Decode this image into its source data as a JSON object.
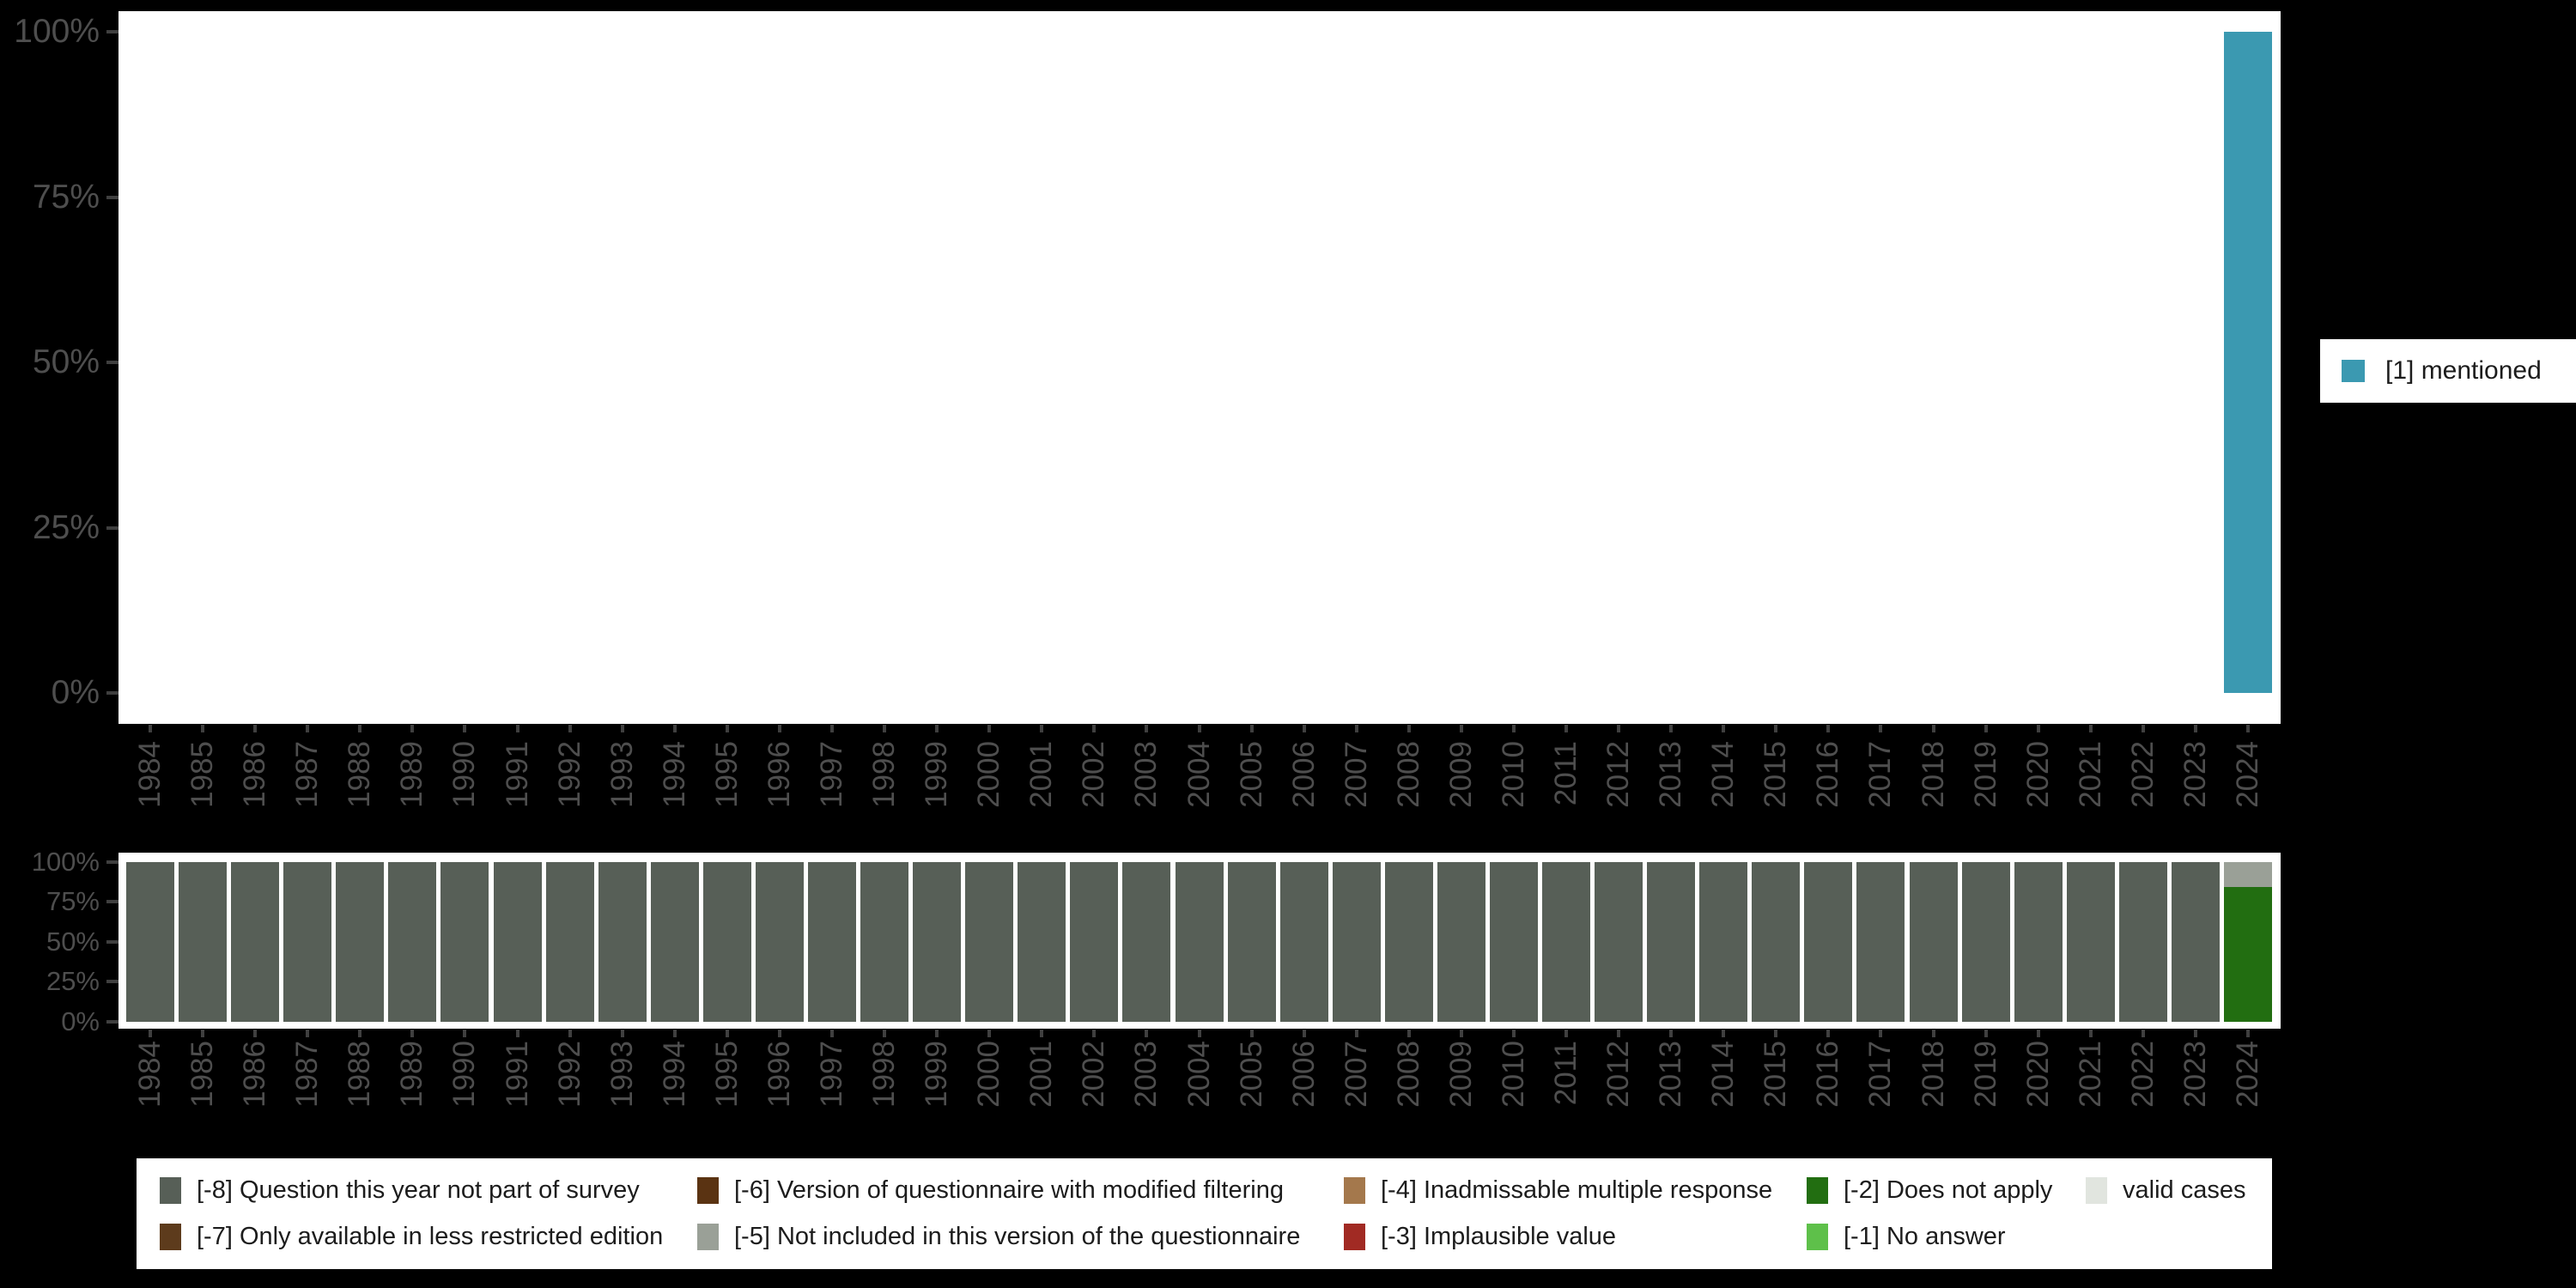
{
  "background": "#000000",
  "panel_color": "#ffffff",
  "axis_text_color": "#4e4e4e",
  "top_legend": {
    "label": "[1] mentioned",
    "color": "#3b99b1"
  },
  "missing_legend": {
    "columns": [
      [
        {
          "label": "[-8] Question this year not part of survey",
          "color": "#575f57"
        },
        {
          "label": "[-7] Only available in less restricted edition",
          "color": "#5d3b1c"
        }
      ],
      [
        {
          "label": "[-6] Version of questionnaire with modified filtering",
          "color": "#5a3312"
        },
        {
          "label": "[-5] Not included in this version of the questionnaire",
          "color": "#9aa097"
        }
      ],
      [
        {
          "label": "[-4] Inadmissable multiple response",
          "color": "#a4784c"
        },
        {
          "label": "[-3] Implausible value",
          "color": "#a12a23"
        }
      ],
      [
        {
          "label": "[-2] Does not apply",
          "color": "#226e11"
        },
        {
          "label": "[-1] No answer",
          "color": "#5ec04a"
        }
      ],
      [
        {
          "label": "valid cases",
          "color": "#e1e5df"
        }
      ]
    ]
  },
  "chart_data": [
    {
      "id": "values-by-year",
      "type": "bar",
      "stacked": true,
      "title": "",
      "xlabel": "",
      "ylabel": "",
      "unit": "percent",
      "ylim": [
        0,
        100
      ],
      "grid": false,
      "legend_position": "right",
      "y_ticks": [
        "0%",
        "25%",
        "50%",
        "75%",
        "100%"
      ],
      "categories": [
        "1984",
        "1985",
        "1986",
        "1987",
        "1988",
        "1989",
        "1990",
        "1991",
        "1992",
        "1993",
        "1994",
        "1995",
        "1996",
        "1997",
        "1998",
        "1999",
        "2000",
        "2001",
        "2002",
        "2003",
        "2004",
        "2005",
        "2006",
        "2007",
        "2008",
        "2009",
        "2010",
        "2011",
        "2012",
        "2013",
        "2014",
        "2015",
        "2016",
        "2017",
        "2018",
        "2019",
        "2020",
        "2021",
        "2022",
        "2023",
        "2024"
      ],
      "series": [
        {
          "name": "[1] mentioned",
          "color": "#3b99b1",
          "values": [
            null,
            null,
            null,
            null,
            null,
            null,
            null,
            null,
            null,
            null,
            null,
            null,
            null,
            null,
            null,
            null,
            null,
            null,
            null,
            null,
            null,
            null,
            null,
            null,
            null,
            null,
            null,
            null,
            null,
            null,
            null,
            null,
            null,
            null,
            null,
            null,
            null,
            null,
            null,
            null,
            100
          ]
        }
      ]
    },
    {
      "id": "missings-by-year",
      "type": "bar",
      "stacked": true,
      "title": "",
      "xlabel": "",
      "ylabel": "",
      "unit": "percent",
      "ylim": [
        0,
        100
      ],
      "grid": false,
      "legend_position": "bottom",
      "y_ticks": [
        "0%",
        "25%",
        "50%",
        "75%",
        "100%"
      ],
      "categories": [
        "1984",
        "1985",
        "1986",
        "1987",
        "1988",
        "1989",
        "1990",
        "1991",
        "1992",
        "1993",
        "1994",
        "1995",
        "1996",
        "1997",
        "1998",
        "1999",
        "2000",
        "2001",
        "2002",
        "2003",
        "2004",
        "2005",
        "2006",
        "2007",
        "2008",
        "2009",
        "2010",
        "2011",
        "2012",
        "2013",
        "2014",
        "2015",
        "2016",
        "2017",
        "2018",
        "2019",
        "2020",
        "2021",
        "2022",
        "2023",
        "2024"
      ],
      "series": [
        {
          "name": "[-8] Question this year not part of survey",
          "color": "#575f57",
          "values": [
            100,
            100,
            100,
            100,
            100,
            100,
            100,
            100,
            100,
            100,
            100,
            100,
            100,
            100,
            100,
            100,
            100,
            100,
            100,
            100,
            100,
            100,
            100,
            100,
            100,
            100,
            100,
            100,
            100,
            100,
            100,
            100,
            100,
            100,
            100,
            100,
            100,
            100,
            100,
            100,
            0
          ]
        },
        {
          "name": "[-2] Does not apply",
          "color": "#226e11",
          "values": [
            0,
            0,
            0,
            0,
            0,
            0,
            0,
            0,
            0,
            0,
            0,
            0,
            0,
            0,
            0,
            0,
            0,
            0,
            0,
            0,
            0,
            0,
            0,
            0,
            0,
            0,
            0,
            0,
            0,
            0,
            0,
            0,
            0,
            0,
            0,
            0,
            0,
            0,
            0,
            0,
            84
          ]
        },
        {
          "name": "[-5] Not included in this version of the questionnaire",
          "color": "#9aa097",
          "values": [
            0,
            0,
            0,
            0,
            0,
            0,
            0,
            0,
            0,
            0,
            0,
            0,
            0,
            0,
            0,
            0,
            0,
            0,
            0,
            0,
            0,
            0,
            0,
            0,
            0,
            0,
            0,
            0,
            0,
            0,
            0,
            0,
            0,
            0,
            0,
            0,
            0,
            0,
            0,
            0,
            16
          ]
        }
      ]
    }
  ]
}
